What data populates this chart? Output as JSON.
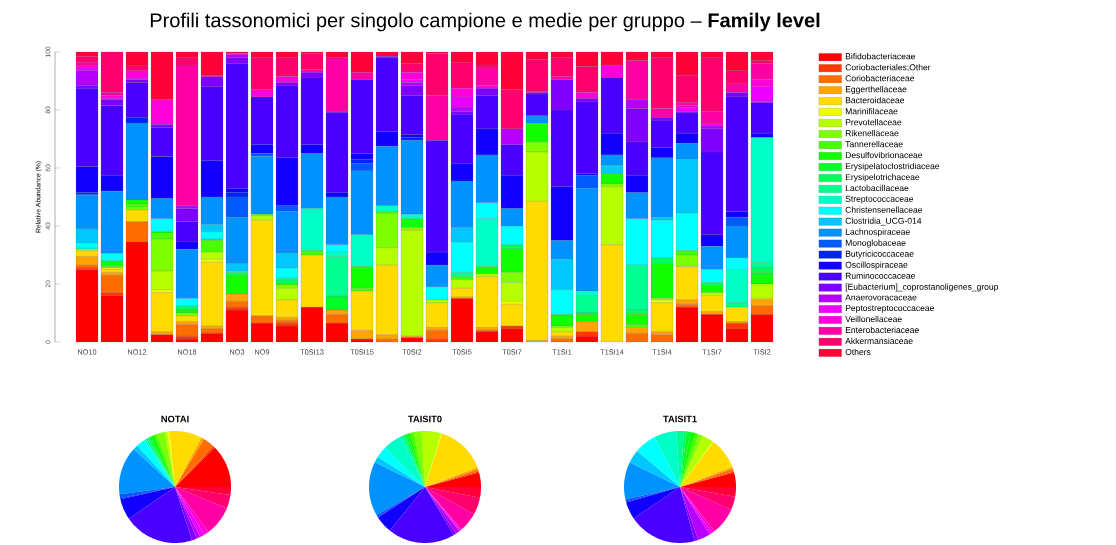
{
  "chart_data": [
    {
      "type": "bar",
      "title": "Profili tassonomici per singolo campione e medie per gruppo – **Family level**",
      "ylabel": "Relative Abundance (%)",
      "stacked": true,
      "legend": "right",
      "ylim": [
        0,
        100
      ],
      "yticks": [
        0,
        20,
        40,
        60,
        80,
        100
      ],
      "categories": [
        "NO10",
        null,
        "NO12",
        null,
        "NO18",
        null,
        "NO3",
        "NO9",
        null,
        "T0SI13",
        null,
        "T0SI15",
        null,
        "T0SI2",
        null,
        "T0SI5",
        null,
        "T0SI7",
        null,
        "T1SI1",
        null,
        "T1SI14",
        null,
        "T1SI4",
        null,
        "T1SI7",
        null,
        "TISI2"
      ],
      "series": [
        {
          "name": "Bifidobacteriaceae",
          "color": "#ff0000",
          "values": [
            25,
            16,
            34.5,
            2.5,
            1,
            3,
            11,
            6.5,
            5.5,
            12,
            6.5,
            1,
            0,
            1.5,
            0,
            15,
            3.5,
            4.5,
            0,
            0,
            2,
            0,
            0,
            0,
            12,
            9.5,
            4.5,
            9.5
          ]
        },
        {
          "name": "Coriobacteriales;Other",
          "color": "#ff3700",
          "values": [
            0.5,
            1,
            0,
            0,
            1,
            0,
            1,
            0,
            1,
            0,
            0,
            0,
            0,
            0,
            1,
            0,
            0.5,
            1,
            0,
            0,
            1.5,
            0,
            0,
            0,
            0,
            0,
            2,
            0
          ]
        },
        {
          "name": "Coriobacteriaceae",
          "color": "#ff6d00",
          "values": [
            1,
            6,
            7,
            0,
            4,
            1.5,
            2,
            2.5,
            1,
            0,
            3,
            0,
            1,
            0,
            3,
            0,
            0,
            0,
            0,
            1,
            0,
            0,
            3,
            2.5,
            1,
            0,
            0,
            3
          ]
        },
        {
          "name": "Eggerthellaceae",
          "color": "#ffa400",
          "values": [
            3,
            1,
            0,
            1,
            1,
            1,
            2.5,
            0,
            1,
            0,
            1.5,
            3,
            1.5,
            0.5,
            1,
            0.5,
            1,
            0,
            0.5,
            1,
            3.5,
            0,
            2,
            1,
            1.5,
            1,
            0.5,
            2
          ]
        },
        {
          "name": "Bacteroidaceae",
          "color": "#ffdb00",
          "values": [
            2,
            1,
            4,
            13.5,
            2,
            22,
            0,
            33,
            6,
            18,
            0,
            13.5,
            24,
            0,
            8.5,
            3,
            17.5,
            7.5,
            48,
            1.5,
            0,
            33.5,
            0,
            10,
            11.5,
            5.5,
            5,
            0.5
          ]
        },
        {
          "name": "Marinifilaceae",
          "color": "#edff00",
          "values": [
            0,
            0.5,
            0,
            1,
            0,
            1,
            0,
            0,
            0,
            0,
            0,
            0,
            0,
            0,
            0,
            0,
            0,
            1,
            0,
            0,
            0,
            0,
            0,
            1,
            0,
            0,
            0,
            0
          ]
        },
        {
          "name": "Prevotellaceae",
          "color": "#b6ff00",
          "values": [
            0.5,
            0,
            0,
            6.5,
            0,
            2.5,
            0,
            1.5,
            4,
            0,
            0,
            0,
            6,
            36.5,
            1,
            3,
            1,
            6.5,
            17,
            1.5,
            0,
            20,
            0,
            0.5,
            0,
            1,
            0,
            5
          ]
        },
        {
          "name": "Rikenellaceae",
          "color": "#80ff00",
          "values": [
            0,
            0.5,
            1,
            11,
            1,
            0,
            0,
            0.5,
            1,
            0,
            0,
            0,
            12,
            1,
            0,
            0,
            0,
            3.5,
            3.5,
            0.5,
            0,
            1,
            0,
            0,
            4,
            0,
            0,
            0
          ]
        },
        {
          "name": "Tannerellaceae",
          "color": "#49ff00",
          "values": [
            0,
            0,
            1,
            2,
            0,
            4,
            0,
            0,
            0.5,
            1.5,
            0,
            1,
            0.5,
            0,
            0,
            1,
            0,
            0,
            0,
            0,
            0,
            0,
            1,
            0,
            1.5,
            0,
            0,
            0
          ]
        },
        {
          "name": "Desulfovibrionaceae",
          "color": "#12ff00",
          "values": [
            0,
            1,
            1.5,
            0.5,
            1,
            0.5,
            6.5,
            0,
            0,
            0,
            0,
            7.5,
            0,
            3,
            0,
            0,
            2.5,
            8,
            6.5,
            3.5,
            2.5,
            3.5,
            3.5,
            12,
            0,
            2.5,
            0,
            3
          ]
        },
        {
          "name": "Erysipelatoclostridiaceae",
          "color": "#00ff24",
          "values": [
            0,
            1,
            0,
            0,
            0,
            0,
            0,
            0,
            0,
            0,
            4.5,
            0,
            0,
            0,
            0,
            0,
            0,
            0,
            0,
            0.5,
            0.5,
            0,
            0,
            0,
            0,
            0,
            0,
            1
          ]
        },
        {
          "name": "Erysipelotrichaceae",
          "color": "#00ff5b",
          "values": [
            0,
            0,
            0,
            0,
            1,
            0,
            1,
            0,
            1.5,
            0,
            0.5,
            0,
            0,
            0,
            0,
            0,
            0,
            1.5,
            0,
            0,
            0,
            0,
            1.5,
            2,
            0,
            1,
            0,
            1.5
          ]
        },
        {
          "name": "Lactobacillaceae",
          "color": "#00ff92",
          "values": [
            0,
            0,
            0,
            0,
            0.5,
            0,
            0,
            0,
            0.5,
            0,
            13.5,
            0,
            0,
            0,
            0,
            1.5,
            0,
            0,
            0,
            0,
            6,
            0,
            15.5,
            0,
            0,
            0,
            1.5,
            2
          ]
        },
        {
          "name": "Streptococcaceae",
          "color": "#00ffc8",
          "values": [
            0.5,
            0,
            0,
            0,
            0,
            0,
            0,
            0,
            0,
            14.5,
            1.5,
            11,
            2,
            1.5,
            0,
            0,
            16.5,
            0,
            0,
            0,
            1.5,
            0,
            0,
            0,
            0,
            0,
            11.5,
            43
          ]
        },
        {
          "name": "Christensenellaceae",
          "color": "#00ffff",
          "values": [
            1.5,
            2.5,
            0,
            4.5,
            2.5,
            2.5,
            0.5,
            0,
            3.5,
            0,
            2.5,
            0,
            0,
            0,
            4.5,
            10.5,
            5.5,
            6.5,
            0,
            8.5,
            0,
            0,
            16,
            13,
            13,
            4.5,
            4,
            0
          ]
        },
        {
          "name": "Clostridia_UCG-014",
          "color": "#00c8ff",
          "values": [
            5,
            0,
            0,
            0,
            0,
            2.5,
            2.5,
            0,
            5,
            0,
            0,
            0,
            0,
            0,
            0,
            5,
            0,
            0,
            0,
            10.5,
            0,
            3,
            0,
            1,
            18.5,
            0,
            0,
            0
          ]
        },
        {
          "name": "Lachnospiraceae",
          "color": "#0092ff",
          "values": [
            11.5,
            21.5,
            26.5,
            7,
            17,
            9.5,
            16,
            20,
            14.5,
            19,
            16.5,
            22,
            20.5,
            25.5,
            7.5,
            16,
            16.5,
            6,
            2.5,
            6.5,
            35.5,
            3.5,
            9,
            20.5,
            5.5,
            8,
            11,
            0
          ]
        },
        {
          "name": "Monoglobaceae",
          "color": "#005bff",
          "values": [
            0.5,
            0,
            0,
            0,
            0,
            0,
            7,
            1,
            2,
            0,
            0,
            2.5,
            0,
            0,
            0,
            0,
            0,
            0,
            0,
            0,
            4.5,
            0,
            0,
            0,
            0,
            0,
            3,
            0
          ]
        },
        {
          "name": "Butyricicoccaceae",
          "color": "#0024ff",
          "values": [
            0.5,
            0,
            2,
            0,
            0,
            0,
            1.5,
            0,
            0,
            0,
            0,
            1.5,
            0,
            1,
            0,
            0,
            0,
            0,
            0,
            0,
            0,
            0,
            0,
            0,
            0,
            0,
            0,
            0
          ]
        },
        {
          "name": "Oscillospiraceae",
          "color": "#1200ff",
          "values": [
            9,
            5.5,
            0,
            14.5,
            2.5,
            12.5,
            1.5,
            3,
            16.5,
            3,
            1.5,
            2,
            5,
            1,
            4.5,
            6,
            9,
            11.5,
            0,
            18.5,
            0.5,
            7.5,
            6,
            3.5,
            3.5,
            4,
            2,
            1.5
          ]
        },
        {
          "name": "Ruminococcaceae",
          "color": "#4900ff",
          "values": [
            27,
            24,
            12,
            10,
            7,
            25.5,
            43,
            16.5,
            25,
            23,
            27.5,
            25.5,
            25.5,
            13.5,
            38.5,
            17,
            11.5,
            10.5,
            7.5,
            26.5,
            25,
            19,
            11.5,
            9.5,
            7,
            28.5,
            39.5,
            10.5
          ]
        },
        {
          "name": "[Eubacterium]_coprostanoligenes_group",
          "color": "#8000ff",
          "values": [
            1,
            2,
            1,
            1,
            4.5,
            3.5,
            2,
            0,
            1,
            2,
            0.5,
            0,
            0.5,
            3.5,
            0,
            1,
            2.5,
            0,
            0.5,
            10.5,
            1,
            0,
            11.5,
            1,
            0.5,
            8,
            1.5,
            0
          ]
        },
        {
          "name": "Anaerovoracaceae",
          "color": "#b600ff",
          "values": [
            5,
            0.5,
            0,
            0,
            1,
            0,
            1,
            0,
            0,
            0,
            0,
            0,
            0,
            1,
            0,
            1.5,
            0,
            5.5,
            0,
            0,
            0,
            0,
            3,
            0,
            0,
            1,
            0,
            0.5
          ]
        },
        {
          "name": "Peptostreptococcaceae",
          "color": "#ed00ff",
          "values": [
            1,
            0,
            0.5,
            0,
            0,
            0,
            0,
            0,
            0,
            0,
            0,
            0,
            0,
            1,
            0,
            3.5,
            0,
            0,
            0.5,
            0,
            0,
            0,
            0,
            0,
            1.5,
            0,
            0,
            5
          ]
        },
        {
          "name": "Veillonellaceae",
          "color": "#ff00db",
          "values": [
            1,
            1,
            2.5,
            8.5,
            0,
            0,
            0.5,
            2.5,
            2,
            0,
            0,
            0,
            0,
            2.5,
            0,
            3,
            1,
            0,
            0,
            0,
            2,
            4.5,
            0,
            0,
            0.5,
            1,
            0,
            2.5
          ]
        },
        {
          "name": "Enterobacteriaceae",
          "color": "#ff00a4",
          "values": [
            1,
            1,
            0,
            0,
            48.5,
            0,
            0,
            0,
            0,
            1,
            18.5,
            2.5,
            0,
            0,
            15.5,
            0,
            6,
            0,
            0,
            1,
            0,
            0,
            13.5,
            3,
            1,
            4,
            3,
            5.5
          ]
        },
        {
          "name": "Akkermansiaceae",
          "color": "#ff006d",
          "values": [
            2,
            14,
            2,
            0,
            2.5,
            0.5,
            0,
            11,
            6.5,
            5.5,
            0,
            0,
            0,
            3,
            14.5,
            9,
            1,
            13.5,
            11,
            6.5,
            9,
            0,
            0,
            17.5,
            9.5,
            18.5,
            4.5,
            1
          ]
        },
        {
          "name": "Others",
          "color": "#ff0037",
          "values": [
            1.5,
            0,
            4.5,
            16.5,
            2,
            8,
            0.5,
            2,
            2,
            0.5,
            2,
            7,
            1.5,
            4,
            0.5,
            3.5,
            4.5,
            13,
            2.5,
            2,
            5,
            4.5,
            3,
            2,
            8,
            2,
            6.5,
            3
          ]
        }
      ]
    },
    {
      "type": "pie",
      "title": "NOTAI",
      "categories": [
        null,
        null,
        null,
        null,
        null,
        null,
        null,
        null,
        null,
        null,
        null,
        null,
        null,
        null,
        null,
        null,
        null,
        null,
        null,
        null,
        null,
        null,
        null,
        null,
        null,
        null,
        null,
        null
      ],
      "values": [
        12.5,
        0.6,
        3.3,
        0.8,
        9.4,
        0.6,
        0.8,
        2.2,
        0.8,
        1.1,
        0.6,
        0.5,
        0.6,
        0.5,
        2.5,
        1.4,
        13.9,
        1.1,
        0.3,
        6.1,
        20.3,
        1.5,
        1,
        1.4,
        1.4,
        8.6,
        3.9,
        2.3
      ],
      "colors": [
        "#ff0000",
        "#ff3700",
        "#ff6d00",
        "#ffa400",
        "#ffdb00",
        "#edff00",
        "#b6ff00",
        "#80ff00",
        "#49ff00",
        "#12ff00",
        "#00ff24",
        "#00ff5b",
        "#00ff92",
        "#00ffc8",
        "#00ffff",
        "#00c8ff",
        "#0092ff",
        "#005bff",
        "#0024ff",
        "#1200ff",
        "#4900ff",
        "#8000ff",
        "#b600ff",
        "#ed00ff",
        "#ff00db",
        "#ff00a4",
        "#ff006d",
        "#ff0037"
      ]
    },
    {
      "type": "pie",
      "title": "TAISIT0",
      "categories": [
        null,
        null,
        null,
        null,
        null,
        null,
        null,
        null,
        null,
        null,
        null,
        null,
        null,
        null,
        null,
        null,
        null,
        null,
        null,
        null,
        null,
        null,
        null,
        null,
        null,
        null,
        null,
        null
      ],
      "values": [
        4.2,
        0.3,
        0.6,
        0.6,
        14.4,
        0.3,
        5.6,
        2.2,
        1.1,
        0.8,
        0.6,
        0.6,
        0.8,
        5.6,
        3.3,
        1.7,
        15.6,
        0.6,
        0.3,
        5,
        19.4,
        0.8,
        1.1,
        0.4,
        0.4,
        5.6,
        5,
        3.1
      ],
      "colors": [
        "#ff0000",
        "#ff3700",
        "#ff6d00",
        "#ffa400",
        "#ffdb00",
        "#edff00",
        "#b6ff00",
        "#80ff00",
        "#49ff00",
        "#12ff00",
        "#00ff24",
        "#00ff5b",
        "#00ff92",
        "#00ffc8",
        "#00ffff",
        "#00c8ff",
        "#0092ff",
        "#005bff",
        "#0024ff",
        "#1200ff",
        "#4900ff",
        "#8000ff",
        "#b600ff",
        "#ed00ff",
        "#ff00db",
        "#ff00a4",
        "#ff006d",
        "#ff0037"
      ]
    },
    {
      "type": "pie",
      "title": "TAISIT1",
      "categories": [
        null,
        null,
        null,
        null,
        null,
        null,
        null,
        null,
        null,
        null,
        null,
        null,
        null,
        null,
        null,
        null,
        null,
        null,
        null,
        null,
        null,
        null,
        null,
        null,
        null,
        null,
        null,
        null
      ],
      "values": [
        4.2,
        0.3,
        0.8,
        0.6,
        8.9,
        0.3,
        3.3,
        1.1,
        1.1,
        1.4,
        1.1,
        0.8,
        2.2,
        6.4,
        6.4,
        3.9,
        10.8,
        0.6,
        0.3,
        5,
        19.7,
        1.1,
        3.6,
        0.8,
        0.8,
        7.8,
        3.9,
        2.8
      ],
      "colors": [
        "#ff0000",
        "#ff3700",
        "#ff6d00",
        "#ffa400",
        "#ffdb00",
        "#edff00",
        "#b6ff00",
        "#80ff00",
        "#49ff00",
        "#12ff00",
        "#00ff24",
        "#00ff5b",
        "#00ff92",
        "#00ffc8",
        "#00ffff",
        "#00c8ff",
        "#0092ff",
        "#005bff",
        "#0024ff",
        "#1200ff",
        "#4900ff",
        "#8000ff",
        "#b600ff",
        "#ed00ff",
        "#ff00db",
        "#ff00a4",
        "#ff006d",
        "#ff0037"
      ]
    }
  ]
}
